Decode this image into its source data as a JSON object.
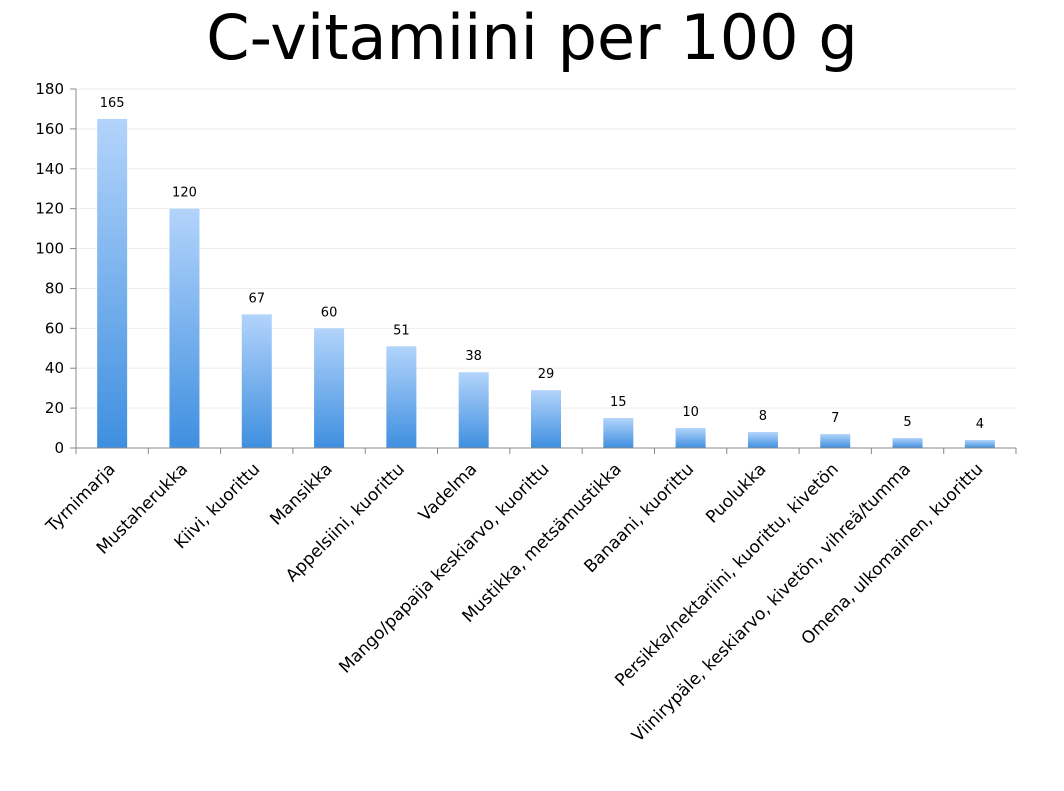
{
  "chart_data": {
    "type": "bar",
    "title": "C-vitamiini per 100 g",
    "xlabel": "",
    "ylabel": "",
    "ylim": [
      0,
      180
    ],
    "yticks": [
      0,
      20,
      40,
      60,
      80,
      100,
      120,
      140,
      160,
      180
    ],
    "grid": true,
    "legend": "none",
    "categories": [
      "Tyrnimarja",
      "Mustaherukka",
      "Kiivi, kuorittu",
      "Mansikka",
      "Appelsiini, kuorittu",
      "Vadelma",
      "Mango/papaija keskiarvo, kuorittu",
      "Mustikka, metsämustikka",
      "Banaani, kuorittu",
      "Puolukka",
      "Persikka/nektariini, kuorittu, kivetön",
      "Viinirypäle, keskiarvo, kivetön, vihreä/tumma",
      "Omena, ulkomainen, kuorittu"
    ],
    "values": [
      165,
      120,
      67,
      60,
      51,
      38,
      29,
      15,
      10,
      8,
      7,
      5,
      4
    ],
    "data_labels": [
      "165",
      "120",
      "67",
      "60",
      "51",
      "38",
      "29",
      "15",
      "10",
      "8",
      "7",
      "5",
      "4"
    ],
    "colors": {
      "bar_top": "#b3d4fb",
      "bar_bottom": "#3f8fe0",
      "grid": "#eeeeee",
      "axis": "#888888"
    }
  }
}
